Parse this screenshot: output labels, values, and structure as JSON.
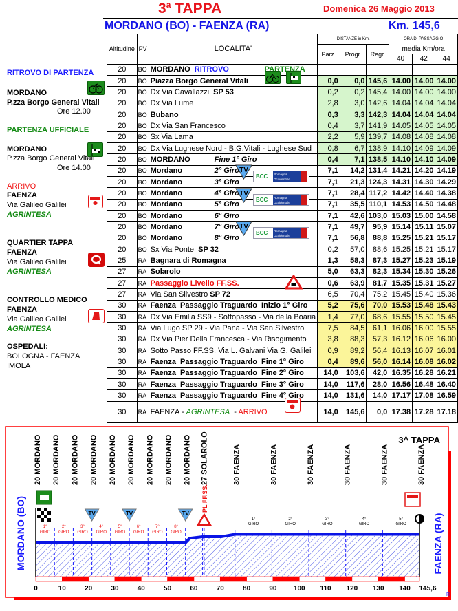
{
  "header": {
    "stage": "3",
    "stage_sup": "a",
    "stage_word": "TAPPA",
    "date": "Domenica  26 Maggio 2013",
    "route": "MORDANO (BO)  - FAENZA (RA)",
    "distance": "Km. 145,6"
  },
  "sidebar": {
    "ritrovo_title": "RITROVO DI PARTENZA",
    "ritrovo_place": "MORDANO",
    "ritrovo_addr": "P.zza Borgo General Vitali",
    "ritrovo_time": "Ore  12.00",
    "partenza_title": "PARTENZA UFFICIALE",
    "partenza_place": "MORDANO",
    "partenza_addr": "P.zza Borgo General Vitali",
    "partenza_time": "Ore  14.00",
    "arrivo_title": "ARRIVO",
    "arrivo_place": "FAENZA",
    "arrivo_addr": "Via  Galileo Galilei",
    "arrivo_sponsor": "AGRINTESA",
    "quartier_title": "QUARTIER TAPPA",
    "quartier_place": "FAENZA",
    "quartier_addr": "Via  Galileo Galilei",
    "quartier_sponsor": "AGRINTESA",
    "medico_title": "CONTROLLO MEDICO",
    "medico_place": "FAENZA",
    "medico_addr": "Via  Galileo Galilei",
    "medico_sponsor": "AGRINTESA",
    "ospedali_title": "OSPEDALI:",
    "ospedali_1": "BOLOGNA - FAENZA",
    "ospedali_2": "IMOLA"
  },
  "table": {
    "headers": {
      "alt": "Altitudine",
      "pv": "PV",
      "loc": "LOCALITA'",
      "dist": "DISTANZE in Km.",
      "parz": "Parz.",
      "progr": "Progr.",
      "regr": "Regr.",
      "ora": "ORA DI PASSAGGIO",
      "media": "media Km/ora",
      "s40": "40",
      "s42": "42",
      "s44": "44"
    },
    "rows": [
      {
        "alt": "20",
        "pv": "BO",
        "loc": [
          {
            "t": "MORDANO ",
            "s": "bold"
          },
          {
            "t": " RITROVO",
            "s": "blue"
          },
          {
            "t": "PARTENZA",
            "s": "greenb"
          }
        ],
        "v": [
          "",
          "",
          "",
          "",
          "",
          ""
        ]
      },
      {
        "alt": "20",
        "pv": "BO",
        "loc": [
          {
            "t": "Piazza Borgo General Vitali",
            "s": "bold"
          }
        ],
        "v": [
          "0,0",
          "0,0",
          "145,6",
          "14.00",
          "14.00",
          "14.00"
        ],
        "bg": "g",
        "bold": true
      },
      {
        "alt": "20",
        "pv": "BO",
        "loc": [
          {
            "t": "Dx Via Cavallazzi  ",
            "s": ""
          },
          {
            "t": "SP 53",
            "s": "bold"
          }
        ],
        "v": [
          "0,2",
          "0,2",
          "145,4",
          "14.00",
          "14.00",
          "14.00"
        ],
        "bg": "g"
      },
      {
        "alt": "20",
        "pv": "BO",
        "loc": [
          {
            "t": "Dx Via Lume",
            "s": ""
          }
        ],
        "v": [
          "2,8",
          "3,0",
          "142,6",
          "14.04",
          "14.04",
          "14.04"
        ],
        "bg": "g"
      },
      {
        "alt": "20",
        "pv": "BO",
        "loc": [
          {
            "t": "Bubano",
            "s": "bold"
          }
        ],
        "v": [
          "0,3",
          "3,3",
          "142,3",
          "14.04",
          "14.04",
          "14.04"
        ],
        "bg": "g",
        "bold": true
      },
      {
        "alt": "20",
        "pv": "BO",
        "loc": [
          {
            "t": "Dx Via San Francesco",
            "s": ""
          }
        ],
        "v": [
          "0,4",
          "3,7",
          "141,9",
          "14.05",
          "14.05",
          "14.05"
        ],
        "bg": "g"
      },
      {
        "alt": "20",
        "pv": "BO",
        "loc": [
          {
            "t": "Sx Via Lama",
            "s": ""
          }
        ],
        "v": [
          "2,2",
          "5,9",
          "139,7",
          "14.08",
          "14.08",
          "14.08"
        ],
        "bg": "g"
      },
      {
        "alt": "20",
        "pv": "BO",
        "loc": [
          {
            "t": "Dx Via Lughese Nord - B.G.Vitali - Lughese Sud",
            "s": ""
          }
        ],
        "v": [
          "0,8",
          "6,7",
          "138,9",
          "14.10",
          "14.09",
          "14.09"
        ],
        "bg": "g"
      },
      {
        "alt": "20",
        "pv": "BO",
        "loc": [
          {
            "t": "MORDANO",
            "s": "bold"
          },
          {
            "t": "Fine 1° Giro",
            "s": "ital"
          }
        ],
        "v": [
          "0,4",
          "7,1",
          "138,5",
          "14.10",
          "14.10",
          "14.09"
        ],
        "bg": "g",
        "bold": true
      },
      {
        "alt": "20",
        "pv": "BO",
        "loc": [
          {
            "t": "Mordano",
            "s": "bold"
          },
          {
            "t": "2° Giro",
            "s": "ital"
          }
        ],
        "v": [
          "7,1",
          "14,2",
          "131,4",
          "14.21",
          "14.20",
          "14.19"
        ],
        "bold": true
      },
      {
        "alt": "20",
        "pv": "BO",
        "loc": [
          {
            "t": "Mordano",
            "s": "bold"
          },
          {
            "t": "3° Giro",
            "s": "ital"
          }
        ],
        "v": [
          "7,1",
          "21,3",
          "124,3",
          "14.31",
          "14.30",
          "14.29"
        ],
        "bold": true
      },
      {
        "alt": "20",
        "pv": "BO",
        "loc": [
          {
            "t": "Mordano",
            "s": "bold"
          },
          {
            "t": "4° Giro",
            "s": "ital"
          }
        ],
        "v": [
          "7,1",
          "28,4",
          "117,2",
          "14.42",
          "14.40",
          "14.38"
        ],
        "bold": true
      },
      {
        "alt": "20",
        "pv": "BO",
        "loc": [
          {
            "t": "Mordano",
            "s": "bold"
          },
          {
            "t": "5° Giro",
            "s": "ital"
          }
        ],
        "v": [
          "7,1",
          "35,5",
          "110,1",
          "14.53",
          "14.50",
          "14.48"
        ],
        "bold": true
      },
      {
        "alt": "20",
        "pv": "BO",
        "loc": [
          {
            "t": "Mordano",
            "s": "bold"
          },
          {
            "t": "6° Giro",
            "s": "ital"
          }
        ],
        "v": [
          "7,1",
          "42,6",
          "103,0",
          "15.03",
          "15.00",
          "14.58"
        ],
        "bold": true
      },
      {
        "alt": "20",
        "pv": "BO",
        "loc": [
          {
            "t": "Mordano",
            "s": "bold"
          },
          {
            "t": "7° Giro",
            "s": "ital"
          }
        ],
        "v": [
          "7,1",
          "49,7",
          "95,9",
          "15.14",
          "15.11",
          "15.07"
        ],
        "bold": true
      },
      {
        "alt": "20",
        "pv": "BO",
        "loc": [
          {
            "t": "Mordano",
            "s": "bold"
          },
          {
            "t": "8° Giro",
            "s": "ital"
          }
        ],
        "v": [
          "7,1",
          "56,8",
          "88,8",
          "15.25",
          "15.21",
          "15.17"
        ],
        "bold": true
      },
      {
        "alt": "20",
        "pv": "BO",
        "loc": [
          {
            "t": "Sx Via Ponte  ",
            "s": ""
          },
          {
            "t": "SP 32",
            "s": "bold"
          }
        ],
        "v": [
          "0,2",
          "57,0",
          "88,6",
          "15.25",
          "15.21",
          "15.17"
        ]
      },
      {
        "alt": "25",
        "pv": "RA",
        "loc": [
          {
            "t": "Bagnara di Romagna",
            "s": "bold"
          }
        ],
        "v": [
          "1,3",
          "58,3",
          "87,3",
          "15.27",
          "15.23",
          "15.19"
        ],
        "bold": true
      },
      {
        "alt": "27",
        "pv": "RA",
        "loc": [
          {
            "t": "Solarolo",
            "s": "bold"
          }
        ],
        "v": [
          "5,0",
          "63,3",
          "82,3",
          "15.34",
          "15.30",
          "15.26"
        ],
        "bold": true
      },
      {
        "alt": "27",
        "pv": "RA",
        "loc": [
          {
            "t": "Passaggio Livello FF.SS.",
            "s": "redb"
          }
        ],
        "v": [
          "0,6",
          "63,9",
          "81,7",
          "15.35",
          "15.31",
          "15.27"
        ],
        "bold": true
      },
      {
        "alt": "27",
        "pv": "RA",
        "loc": [
          {
            "t": "Via San Silvestro ",
            "s": ""
          },
          {
            "t": "SP 72",
            "s": "bold"
          }
        ],
        "v": [
          "6,5",
          "70,4",
          "75,2",
          "15.45",
          "15.40",
          "15.36"
        ]
      },
      {
        "alt": "30",
        "pv": "RA",
        "loc": [
          {
            "t": "Faenza  Passaggio Traguardo  Inizio 1° Giro",
            "s": "bold"
          }
        ],
        "v": [
          "5,2",
          "75,6",
          "70,0",
          "15.53",
          "15.48",
          "15.43"
        ],
        "bg": "y",
        "bold": true
      },
      {
        "alt": "30",
        "pv": "RA",
        "loc": [
          {
            "t": "Dx Via Emilia SS9 - Sottopasso - Via della Boaria",
            "s": ""
          }
        ],
        "v": [
          "1,4",
          "77,0",
          "68,6",
          "15.55",
          "15.50",
          "15.45"
        ],
        "bg": "y"
      },
      {
        "alt": "30",
        "pv": "RA",
        "loc": [
          {
            "t": "Via Lugo SP 29 - Via Pana - Via San Silvestro",
            "s": ""
          }
        ],
        "v": [
          "7,5",
          "84,5",
          "61,1",
          "16.06",
          "16.00",
          "15.55"
        ],
        "bg": "y"
      },
      {
        "alt": "30",
        "pv": "RA",
        "loc": [
          {
            "t": "Dx Via Pier Della Francesca - Via Risogimento",
            "s": ""
          }
        ],
        "v": [
          "3,8",
          "88,3",
          "57,3",
          "16.12",
          "16.06",
          "16.00"
        ],
        "bg": "y"
      },
      {
        "alt": "30",
        "pv": "RA",
        "loc": [
          {
            "t": "Sotto Passo FF.SS. Via L. Galvani Via G. Galilei",
            "s": ""
          }
        ],
        "v": [
          "0,9",
          "89,2",
          "56,4",
          "16.13",
          "16.07",
          "16.01"
        ],
        "bg": "y"
      },
      {
        "alt": "30",
        "pv": "RA",
        "loc": [
          {
            "t": "Faenza  Passaggio Traguardo  Fine 1° Giro",
            "s": "bold"
          }
        ],
        "v": [
          "0,4",
          "89,6",
          "56,0",
          "16.14",
          "16.08",
          "16.02"
        ],
        "bg": "y",
        "bold": true
      },
      {
        "alt": "30",
        "pv": "RA",
        "loc": [
          {
            "t": "Faenza  Passaggio Traguardo  Fine 2° Giro",
            "s": "bold"
          }
        ],
        "v": [
          "14,0",
          "103,6",
          "42,0",
          "16.35",
          "16.28",
          "16.21"
        ],
        "bold": true
      },
      {
        "alt": "30",
        "pv": "RA",
        "loc": [
          {
            "t": "Faenza  Passaggio Traguardo  Fine 3° Giro",
            "s": "bold"
          }
        ],
        "v": [
          "14,0",
          "117,6",
          "28,0",
          "16.56",
          "16.48",
          "16.40"
        ],
        "bold": true
      },
      {
        "alt": "30",
        "pv": "RA",
        "loc": [
          {
            "t": "Faenza  Passaggio Traguardo  Fine 4° Giro",
            "s": "bold"
          }
        ],
        "v": [
          "14,0",
          "131,6",
          "14,0",
          "17.17",
          "17.08",
          "16.59"
        ],
        "bold": true
      },
      {
        "alt": "30",
        "pv": "RA",
        "loc": [
          {
            "t": "FAENZA - ",
            "s": ""
          },
          {
            "t": "AGRINTESA",
            "s": "greeni"
          },
          {
            "t": "  - ",
            "s": ""
          },
          {
            "t": "ARRIVO",
            "s": "red"
          }
        ],
        "v": [
          "14,0",
          "145,6",
          "0,0",
          "17.38",
          "17.28",
          "17.18"
        ],
        "bold": true,
        "tall": true
      }
    ],
    "sponsor_text": {
      "tv": "TV",
      "bcc": "BCC",
      "bcc_sub": "Romagna Occidentale",
      "arrivo": "ARRIVO"
    }
  },
  "profile": {
    "title": "3^ TAPPA",
    "start_label": "MORDANO (BO)",
    "end_label": "FAENZA (RA)",
    "pl_label": "PL FF.SS.",
    "giro_word": "GIRO",
    "corner_mark": "R",
    "colors": {
      "frame": "#ff0000",
      "profile": "#0a14e6",
      "hatch": "#1a2ae0",
      "labels_start": "#1a1aff"
    },
    "chart_data": {
      "type": "area",
      "xlabel": "",
      "ylabel": "",
      "xlim": [
        0,
        145.6
      ],
      "x_ticks": [
        "0",
        "10",
        "20",
        "30",
        "40",
        "50",
        "60",
        "70",
        "80",
        "90",
        "100",
        "110",
        "120",
        "130",
        "140",
        "145,6"
      ],
      "points": [
        {
          "km": 0,
          "alt": 20
        },
        {
          "km": 57.0,
          "alt": 20
        },
        {
          "km": 58.3,
          "alt": 25
        },
        {
          "km": 63.3,
          "alt": 27
        },
        {
          "km": 70.4,
          "alt": 27
        },
        {
          "km": 75.6,
          "alt": 30
        },
        {
          "km": 145.6,
          "alt": 30
        }
      ],
      "place_labels": [
        {
          "km": 0,
          "text": "20 MORDANO"
        },
        {
          "km": 7.1,
          "text": "20 MORDANO"
        },
        {
          "km": 14.2,
          "text": "20 MORDANO"
        },
        {
          "km": 21.3,
          "text": "20 MORDANO"
        },
        {
          "km": 28.4,
          "text": "20 MORDANO"
        },
        {
          "km": 35.5,
          "text": "20 MORDANO"
        },
        {
          "km": 42.6,
          "text": "20 MORDANO"
        },
        {
          "km": 49.7,
          "text": "20 MORDANO"
        },
        {
          "km": 56.8,
          "text": "20 MORDANO"
        },
        {
          "km": 63.3,
          "text": "27 SOLAROLO"
        },
        {
          "km": 75.6,
          "text": "30 FAENZA"
        },
        {
          "km": 89.6,
          "text": "30 FAENZA"
        },
        {
          "km": 103.6,
          "text": "30 FAENZA"
        },
        {
          "km": 117.6,
          "text": "30 FAENZA"
        },
        {
          "km": 131.6,
          "text": "30 FAENZA"
        },
        {
          "km": 145.6,
          "text": "30 FAENZA"
        }
      ],
      "laps_mordano": [
        "1°",
        "2°",
        "3°",
        "4°",
        "5°",
        "6°",
        "7°",
        "8°"
      ],
      "laps_faenza": [
        "1°",
        "2°",
        "3°",
        "4°",
        "5°"
      ],
      "lap_marks": [
        7.1,
        14.2,
        21.3,
        28.4,
        35.5,
        42.6,
        49.7,
        56.8,
        63.3,
        63.9,
        75.6,
        89.6,
        103.6,
        117.6,
        131.6
      ],
      "tv_km": [
        21.3,
        35.5,
        56.8
      ],
      "level_crossing_km": 63.9
    }
  }
}
